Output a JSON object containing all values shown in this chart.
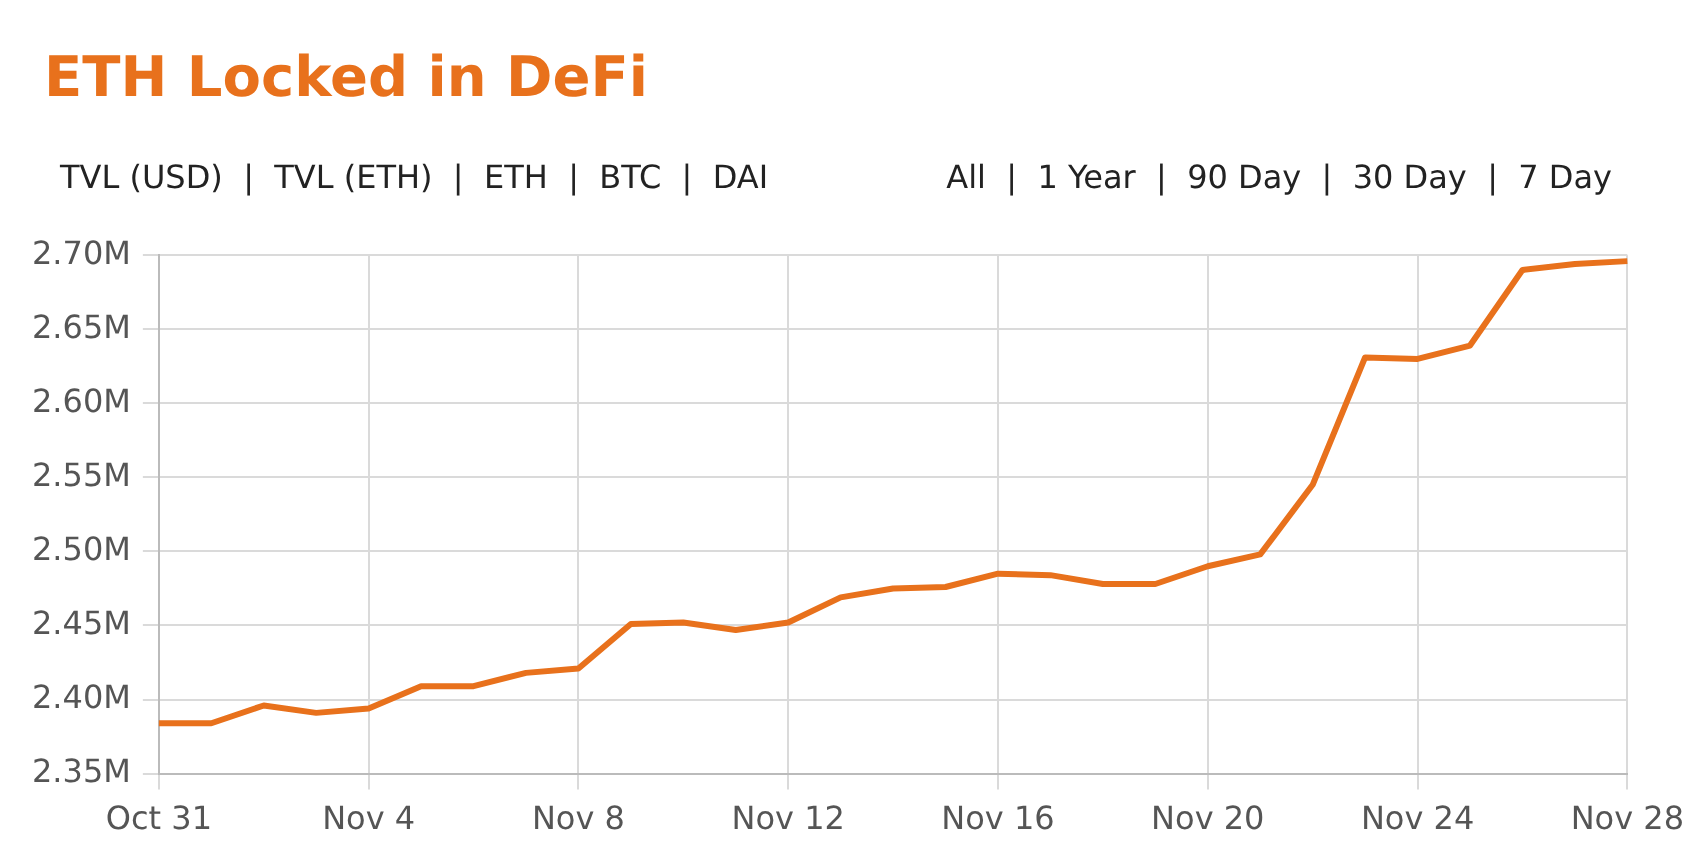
{
  "chart_data": {
    "type": "line",
    "title": "ETH Locked in DeFi",
    "annotations": [
      "TVL (USD)  |  TVL (ETH)  |  ETH  |  BTC  |  DAI",
      "All  |  1 Year  |  90 Day  |  30 Day  |  7 Day"
    ],
    "categories": [
      "Oct 31",
      null,
      null,
      null,
      "Nov 4",
      null,
      null,
      null,
      "Nov 8",
      null,
      null,
      null,
      "Nov 12",
      null,
      null,
      null,
      "Nov 16",
      null,
      null,
      null,
      "Nov 20",
      null,
      null,
      null,
      "Nov 24",
      null,
      null,
      null,
      "Nov 28"
    ],
    "series": [
      {
        "color": "#e8711c",
        "values": [
          2384000,
          2384000,
          2396000,
          2391000,
          2394000,
          2409000,
          2409000,
          2418000,
          2421000,
          2451000,
          2452000,
          2447000,
          2452000,
          2469000,
          2475000,
          2476000,
          2485000,
          2484000,
          2478000,
          2478000,
          2490000,
          2498000,
          2545000,
          2631000,
          2630000,
          2639000,
          2690000,
          2694000,
          2696000
        ]
      }
    ],
    "ylim": [
      2350000,
      2700000
    ],
    "yticks": [
      {
        "value": 2350000,
        "label": "2.35M"
      },
      {
        "value": 2400000,
        "label": "2.40M"
      },
      {
        "value": 2450000,
        "label": "2.45M"
      },
      {
        "value": 2500000,
        "label": "2.50M"
      },
      {
        "value": 2550000,
        "label": "2.55M"
      },
      {
        "value": 2600000,
        "label": "2.60M"
      },
      {
        "value": 2650000,
        "label": "2.65M"
      },
      {
        "value": 2700000,
        "label": "2.70M"
      }
    ],
    "grid": true,
    "legend": false,
    "marker": "none",
    "line_style": "solid"
  }
}
